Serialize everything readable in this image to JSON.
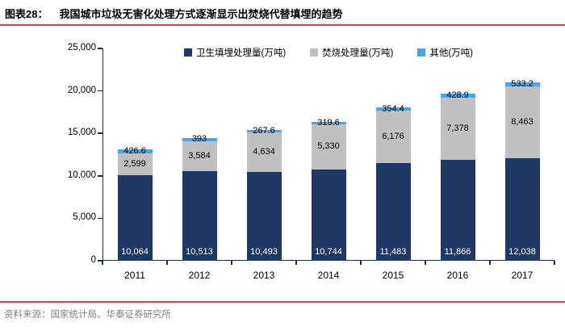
{
  "header": {
    "tag": "图表28：",
    "title": "我国城市垃圾无害化处理方式逐渐显示出焚烧代替填埋的趋势"
  },
  "footer": {
    "source": "资料来源：国家统计局、华泰证券研究所"
  },
  "colors": {
    "accent_line": "#E0402F",
    "axis": "#1B2B4D",
    "landfill_navy": "#1F3864",
    "incineration_gray": "#C0C0C0",
    "other_blue": "#4BA6E8",
    "footer_text": "#808080"
  },
  "chart_data": {
    "type": "bar",
    "stacked": true,
    "grid": false,
    "legend_position": "top",
    "categories": [
      "2011",
      "2012",
      "2013",
      "2014",
      "2015",
      "2016",
      "2017"
    ],
    "series": [
      {
        "name": "卫生填埋处理量(万吨)",
        "color": "#1F3864",
        "values": [
          10064,
          10513,
          10493,
          10744,
          11483,
          11866,
          12038
        ],
        "labels": [
          "10,064",
          "10,513",
          "10,493",
          "10,744",
          "11,483",
          "11,866",
          "12,038"
        ],
        "label_color": "#FFFFFF",
        "label_position": "inside-base"
      },
      {
        "name": "焚烧处理量(万吨)",
        "color": "#C0C0C0",
        "values": [
          2599,
          3584,
          4634,
          5330,
          6176,
          7378,
          8463
        ],
        "labels": [
          "2,599",
          "3,584",
          "4,634",
          "5,330",
          "6,176",
          "7,378",
          "8,463"
        ],
        "label_color": "#000000",
        "label_position": "center"
      },
      {
        "name": "其他(万吨)",
        "color": "#4BA6E8",
        "values": [
          426.6,
          393,
          267.6,
          319.6,
          354.4,
          428.9,
          533.2
        ],
        "labels": [
          "426.6",
          "393",
          "267.6",
          "319.6",
          "354.4",
          "428.9",
          "533.2"
        ],
        "label_color": "#000000",
        "label_position": "center"
      }
    ],
    "ylim": [
      0,
      25000
    ],
    "ytick_step": 5000,
    "yticks": [
      "0",
      "5,000",
      "10,000",
      "15,000",
      "20,000",
      "25,000"
    ],
    "xlabel": "",
    "ylabel": ""
  }
}
